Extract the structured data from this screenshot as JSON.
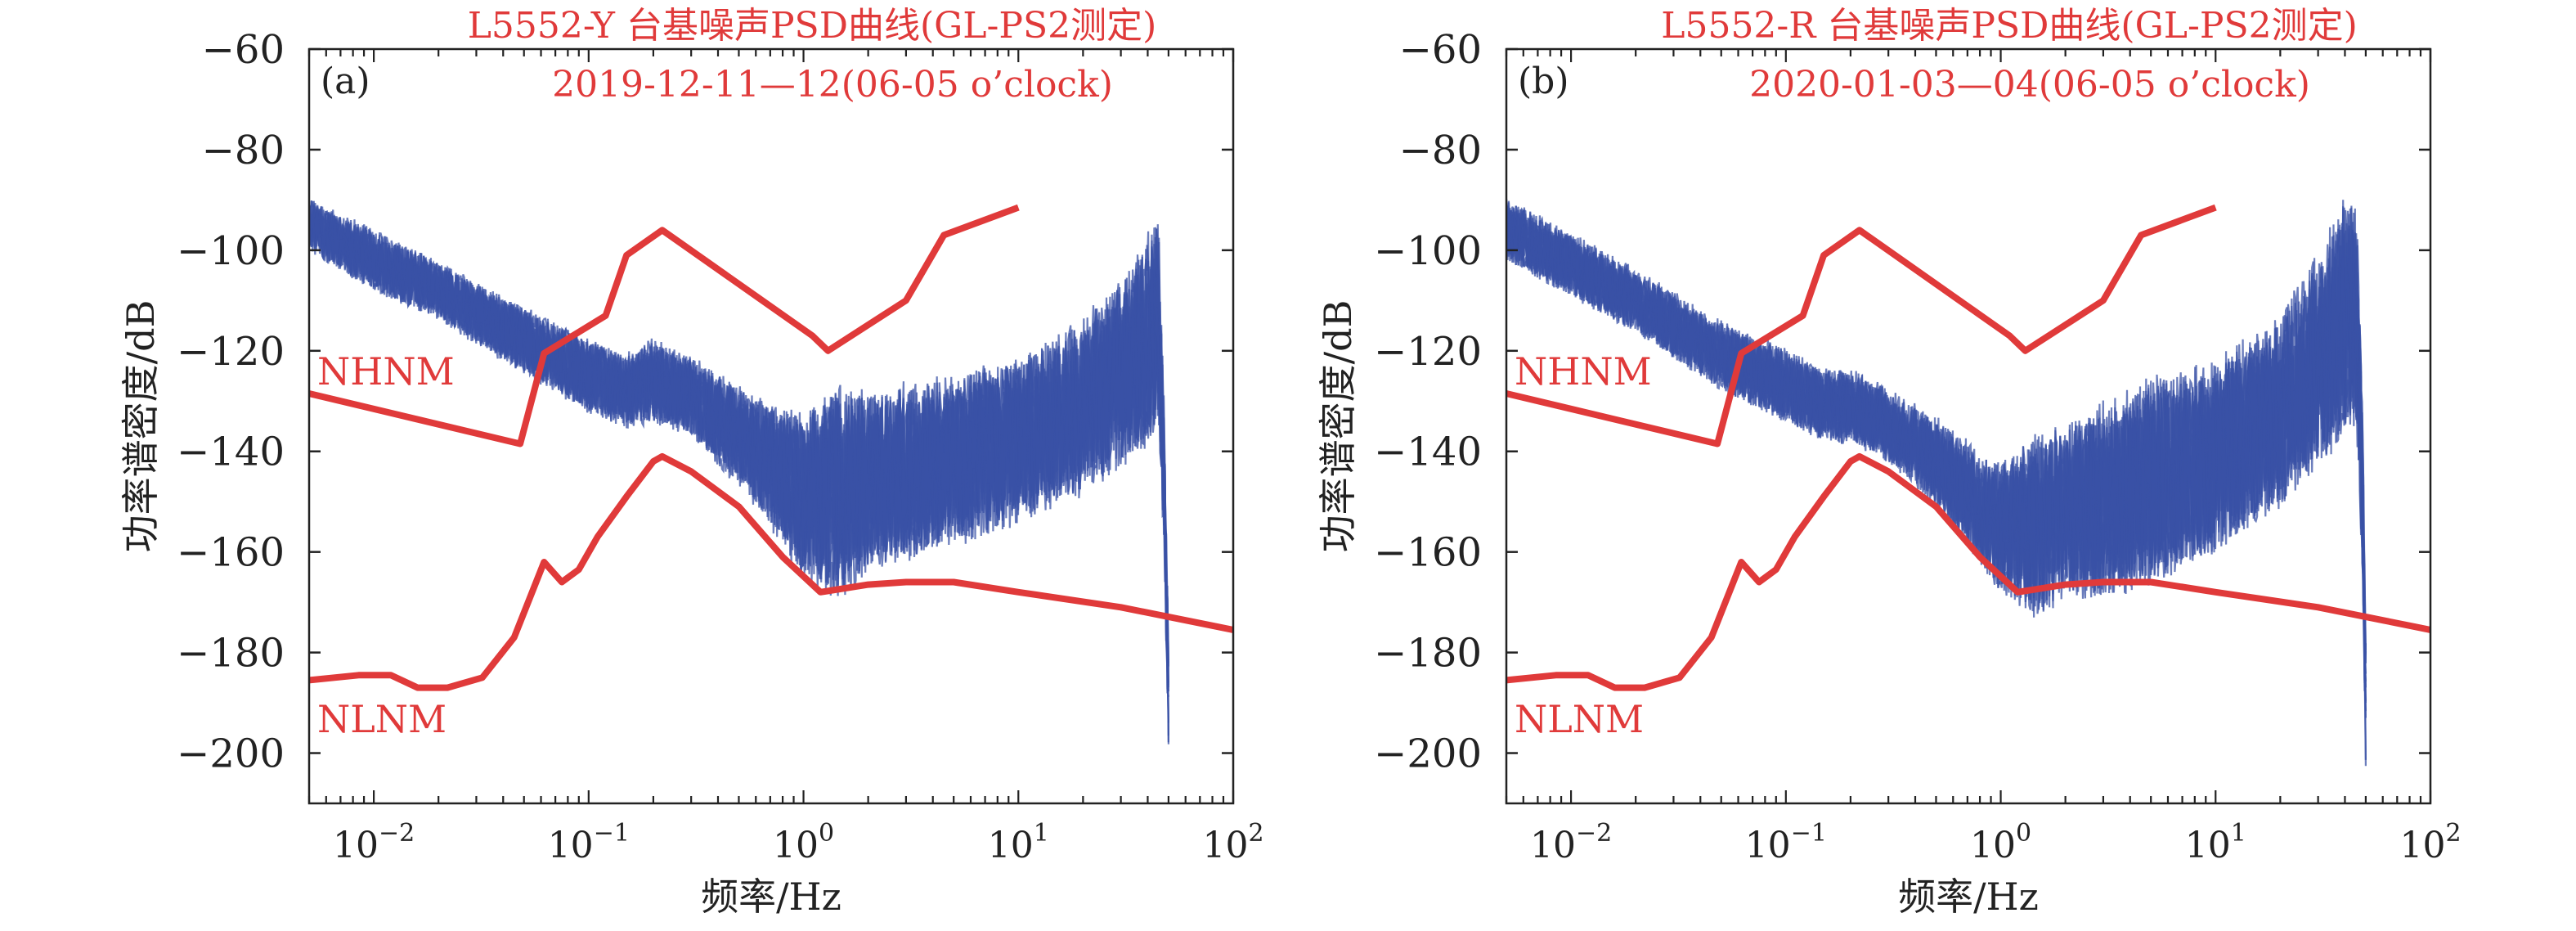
{
  "chart_data": [
    {
      "type": "line",
      "panel_label": "(a)",
      "title": "L5552-Y 台基噪声PSD曲线(GL-PS2测定)",
      "subtitle": "2019-12-11—12(06-05 o’clock)",
      "xlabel": "频率/Hz",
      "ylabel": "功率谱密度/dB",
      "x_scale": "log",
      "xlim": [
        0.005,
        100
      ],
      "ylim": [
        -210,
        -60
      ],
      "x_ticks": [
        0.01,
        0.1,
        1,
        10,
        100
      ],
      "x_tick_labels": [
        {
          "base": "10",
          "exp": "−2"
        },
        {
          "base": "10",
          "exp": "−1"
        },
        {
          "base": "10",
          "exp": "0"
        },
        {
          "base": "10",
          "exp": "1"
        },
        {
          "base": "10",
          "exp": "2"
        }
      ],
      "y_ticks": [
        -60,
        -80,
        -100,
        -120,
        -140,
        -160,
        -180,
        -200
      ],
      "y_tick_labels": [
        "−60",
        "−80",
        "−100",
        "−120",
        "−140",
        "−160",
        "−180",
        "−200"
      ],
      "grid": false,
      "colors": {
        "model": "#e03a3a",
        "psd": "#3a52a6",
        "title": "#e03a3a",
        "axis": "#222222"
      },
      "series": [
        {
          "name": "NHNM",
          "x": [
            0.005,
            0.048,
            0.062,
            0.12,
            0.15,
            0.22,
            1.1,
            1.3,
            3.0,
            4.5,
            10
          ],
          "values": [
            -128.5,
            -138.5,
            -120.5,
            -113,
            -101,
            -96,
            -117,
            -120,
            -110,
            -97,
            -91.5
          ]
        },
        {
          "name": "NLNM",
          "x": [
            0.005,
            0.0085,
            0.012,
            0.016,
            0.022,
            0.032,
            0.045,
            0.062,
            0.075,
            0.09,
            0.11,
            0.15,
            0.2,
            0.22,
            0.3,
            0.5,
            0.8,
            1.2,
            2.0,
            3.0,
            5.0,
            10,
            30,
            100
          ],
          "values": [
            -185.5,
            -184.5,
            -184.5,
            -187,
            -187,
            -185,
            -177,
            -162,
            -166,
            -163.5,
            -157,
            -149,
            -142,
            -141,
            -144,
            -151,
            -161,
            -168,
            -166.5,
            -166,
            -166,
            -168,
            -171,
            -175.5
          ]
        },
        {
          "name": "PSD",
          "x": [
            0.005,
            0.01,
            0.02,
            0.05,
            0.1,
            0.15,
            0.2,
            0.3,
            0.5,
            0.8,
            1.0,
            1.5,
            2.0,
            3.0,
            5.0,
            10,
            20,
            30,
            40,
            45,
            48,
            50
          ],
          "values": [
            -95,
            -102,
            -108,
            -118,
            -125,
            -128,
            -126,
            -129,
            -137,
            -145,
            -149,
            -148,
            -146,
            -144,
            -142,
            -138,
            -131,
            -125,
            -118,
            -115,
            -150,
            -190
          ],
          "upper": [
            -90,
            -96,
            -103,
            -112,
            -118,
            -121,
            -118,
            -122,
            -128,
            -132,
            -133,
            -127,
            -133,
            -131,
            -129,
            -125,
            -117,
            -111,
            -103,
            -100,
            -140,
            -180
          ],
          "lower": [
            -100,
            -108,
            -114,
            -125,
            -132,
            -135,
            -134,
            -137,
            -147,
            -158,
            -165,
            -168,
            -166,
            -164,
            -161,
            -156,
            -150,
            -147,
            -144,
            -140,
            -170,
            -200
          ]
        }
      ],
      "annotations": [
        "NHNM",
        "NLNM"
      ]
    },
    {
      "type": "line",
      "panel_label": "(b)",
      "title": "L5552-R 台基噪声PSD曲线(GL-PS2测定)",
      "subtitle": "2020-01-03—04(06-05 o’clock)",
      "xlabel": "频率/Hz",
      "ylabel": "功率谱密度/dB",
      "x_scale": "log",
      "xlim": [
        0.005,
        100
      ],
      "ylim": [
        -210,
        -60
      ],
      "x_ticks": [
        0.01,
        0.1,
        1,
        10,
        100
      ],
      "x_tick_labels": [
        {
          "base": "10",
          "exp": "−2"
        },
        {
          "base": "10",
          "exp": "−1"
        },
        {
          "base": "10",
          "exp": "0"
        },
        {
          "base": "10",
          "exp": "1"
        },
        {
          "base": "10",
          "exp": "2"
        }
      ],
      "y_ticks": [
        -60,
        -80,
        -100,
        -120,
        -140,
        -160,
        -180,
        -200
      ],
      "y_tick_labels": [
        "−60",
        "−80",
        "−100",
        "−120",
        "−140",
        "−160",
        "−180",
        "−200"
      ],
      "grid": false,
      "colors": {
        "model": "#e03a3a",
        "psd": "#3a52a6",
        "title": "#e03a3a",
        "axis": "#222222"
      },
      "series": [
        {
          "name": "NHNM",
          "x": [
            0.005,
            0.048,
            0.062,
            0.12,
            0.15,
            0.22,
            1.1,
            1.3,
            3.0,
            4.5,
            10
          ],
          "values": [
            -128.5,
            -138.5,
            -120.5,
            -113,
            -101,
            -96,
            -117,
            -120,
            -110,
            -97,
            -91.5
          ]
        },
        {
          "name": "NLNM",
          "x": [
            0.005,
            0.0085,
            0.012,
            0.016,
            0.022,
            0.032,
            0.045,
            0.062,
            0.075,
            0.09,
            0.11,
            0.15,
            0.2,
            0.22,
            0.3,
            0.5,
            0.8,
            1.2,
            2.0,
            3.0,
            5.0,
            10,
            30,
            100
          ],
          "values": [
            -185.5,
            -184.5,
            -184.5,
            -187,
            -187,
            -185,
            -177,
            -162,
            -166,
            -163.5,
            -157,
            -149,
            -142,
            -141,
            -144,
            -151,
            -161,
            -168,
            -166.5,
            -166,
            -166,
            -168,
            -171,
            -175.5
          ]
        },
        {
          "name": "PSD",
          "x": [
            0.005,
            0.01,
            0.02,
            0.05,
            0.1,
            0.15,
            0.2,
            0.3,
            0.5,
            0.8,
            1.0,
            1.5,
            2.0,
            3.0,
            5.0,
            10,
            20,
            30,
            40,
            45,
            48,
            50
          ],
          "values": [
            -96,
            -103,
            -110,
            -121,
            -127,
            -131,
            -131,
            -135,
            -142,
            -151,
            -155,
            -155,
            -152,
            -150,
            -146,
            -141,
            -132,
            -122,
            -113,
            -112,
            -145,
            -190
          ],
          "upper": [
            -90,
            -97,
            -104,
            -114,
            -120,
            -124,
            -124,
            -128,
            -134,
            -140,
            -141,
            -135,
            -135,
            -131,
            -127,
            -124,
            -116,
            -106,
            -95,
            -93,
            -135,
            -180
          ],
          "lower": [
            -102,
            -109,
            -116,
            -127,
            -134,
            -138,
            -138,
            -142,
            -151,
            -161,
            -166,
            -170,
            -168,
            -168,
            -166,
            -160,
            -152,
            -146,
            -140,
            -136,
            -170,
            -204
          ]
        }
      ],
      "annotations": [
        "NHNM",
        "NLNM"
      ]
    }
  ]
}
